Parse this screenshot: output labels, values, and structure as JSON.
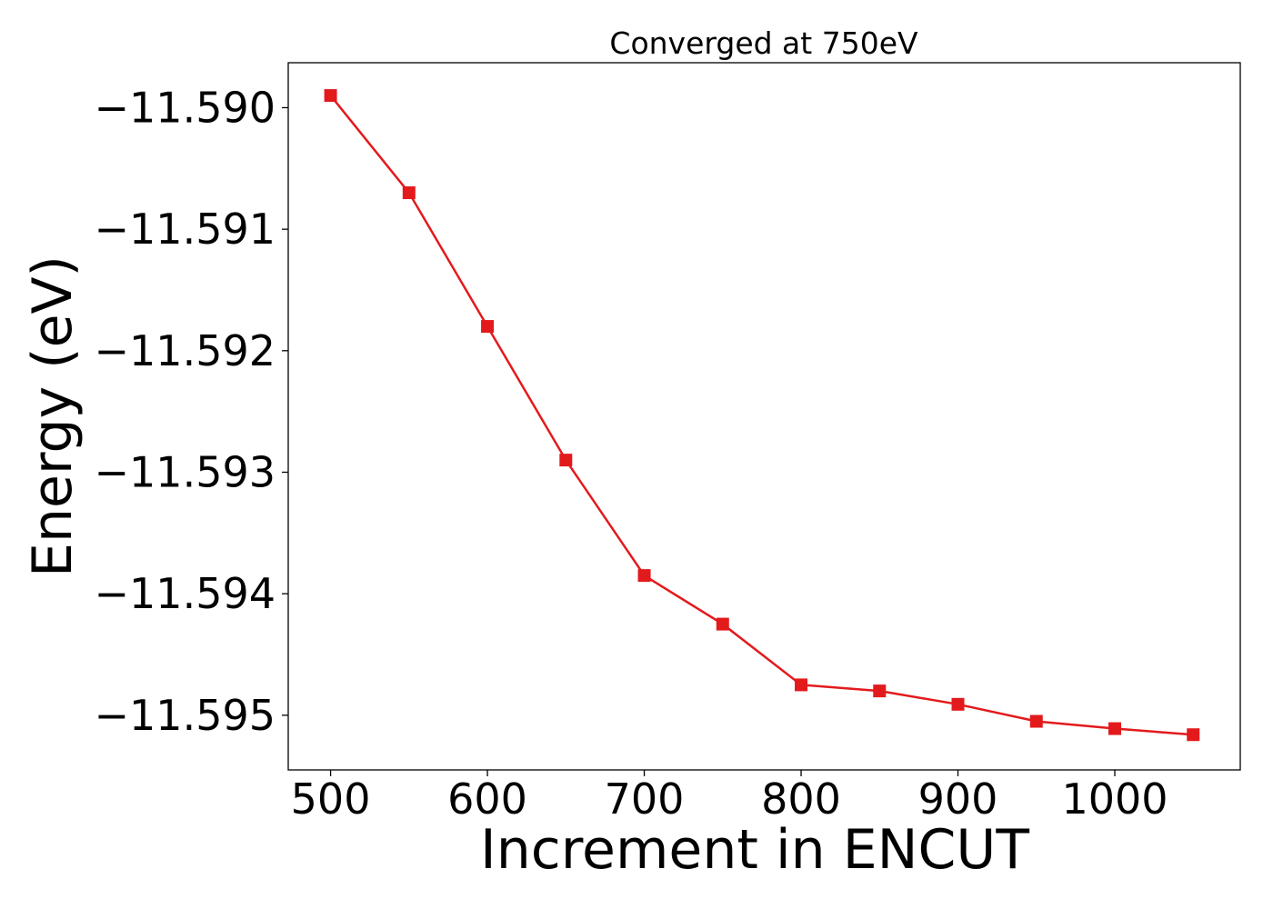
{
  "chart_data": {
    "type": "line",
    "title": "Converged at 750eV",
    "xlabel": "Increment in ENCUT",
    "ylabel": "Energy (eV)",
    "x": [
      500,
      550,
      600,
      650,
      700,
      750,
      800,
      850,
      900,
      950,
      1000,
      1050
    ],
    "series": [
      {
        "values": [
          -11.5899,
          -11.5907,
          -11.5918,
          -11.5929,
          -11.59385,
          -11.59425,
          -11.59475,
          -11.5948,
          -11.59491,
          -11.59505,
          -11.59511,
          -11.59516
        ],
        "color": "#e31a1c",
        "marker": "square"
      }
    ],
    "xlim": [
      473,
      1080
    ],
    "ylim": [
      -11.59545,
      -11.58963
    ],
    "xticks": [
      500,
      600,
      700,
      800,
      900,
      1000
    ],
    "yticks": [
      -11.59,
      -11.591,
      -11.592,
      -11.593,
      -11.594,
      -11.595
    ],
    "xtick_labels": [
      "500",
      "600",
      "700",
      "800",
      "900",
      "1000"
    ],
    "ytick_labels": [
      "−11.590",
      "−11.591",
      "−11.592",
      "−11.593",
      "−11.594",
      "−11.595"
    ],
    "grid": false,
    "legend": "none"
  }
}
